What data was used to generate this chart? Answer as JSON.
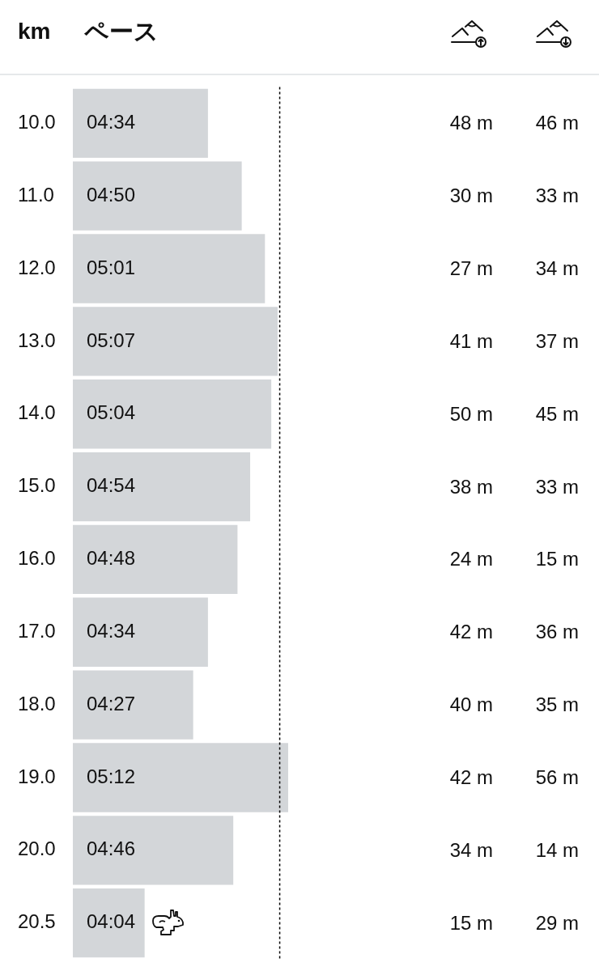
{
  "chart_data": [
    {
      "type": "bar",
      "orientation": "horizontal",
      "ylabel": "km",
      "xlabel": "ペース",
      "categories": [
        "10.0",
        "11.0",
        "12.0",
        "13.0",
        "14.0",
        "15.0",
        "16.0",
        "17.0",
        "18.0",
        "19.0",
        "20.0",
        "20.5"
      ],
      "values": [
        274,
        290,
        301,
        307,
        304,
        294,
        288,
        274,
        267,
        312,
        286,
        244
      ],
      "value_labels": [
        "04:34",
        "04:50",
        "05:01",
        "05:07",
        "05:04",
        "04:54",
        "04:48",
        "04:34",
        "04:27",
        "05:12",
        "04:46",
        "04:04"
      ],
      "color": "#d3d6d9",
      "xlim": [
        210,
        312
      ],
      "tick_labels": "y",
      "ref_lines": [
        {
          "axis": "x",
          "value": 308,
          "color": "#000000",
          "line_style": "dotted"
        }
      ]
    },
    {
      "type": "other",
      "annotations": [
        "48 m",
        "46 m",
        "30 m",
        "33 m",
        "27 m",
        "34 m",
        "41 m",
        "37 m",
        "50 m",
        "45 m",
        "38 m",
        "33 m",
        "24 m",
        "15 m",
        "42 m",
        "36 m",
        "40 m",
        "35 m",
        "42 m",
        "56 m",
        "34 m",
        "14 m",
        "15 m",
        "29 m"
      ]
    }
  ]
}
